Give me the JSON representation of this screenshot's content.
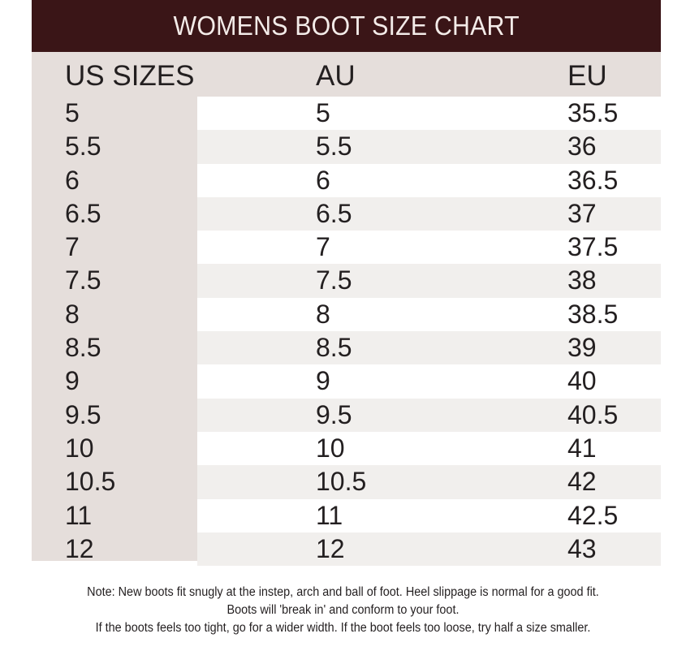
{
  "title": "WOMENS BOOT SIZE CHART",
  "columns": [
    "US SIZES",
    "AU",
    "EU"
  ],
  "rows": [
    {
      "us": "5",
      "au": "5",
      "eu": "35.5"
    },
    {
      "us": "5.5",
      "au": "5.5",
      "eu": "36"
    },
    {
      "us": "6",
      "au": "6",
      "eu": "36.5"
    },
    {
      "us": "6.5",
      "au": "6.5",
      "eu": "37"
    },
    {
      "us": "7",
      "au": "7",
      "eu": "37.5"
    },
    {
      "us": "7.5",
      "au": "7.5",
      "eu": "38"
    },
    {
      "us": "8",
      "au": "8",
      "eu": "38.5"
    },
    {
      "us": "8.5",
      "au": "8.5",
      "eu": "39"
    },
    {
      "us": "9",
      "au": "9",
      "eu": "40"
    },
    {
      "us": "9.5",
      "au": "9.5",
      "eu": "40.5"
    },
    {
      "us": "10",
      "au": "10",
      "eu": "41"
    },
    {
      "us": "10.5",
      "au": "10.5",
      "eu": "42"
    },
    {
      "us": "11",
      "au": "11",
      "eu": "42.5"
    },
    {
      "us": "12",
      "au": "12",
      "eu": "43"
    }
  ],
  "note": [
    "Note: New boots fit snugly at the instep, arch and ball of foot. Heel slippage is normal for a good fit.",
    "Boots will 'break in' and conform to your foot.",
    "If the boots feels too tight, go for a wider width. If the boot feels too loose, try half a size smaller."
  ],
  "colors": {
    "title_bg": "#3a1517",
    "header_bg": "#e5dedb",
    "stripe": "#f1efed"
  }
}
